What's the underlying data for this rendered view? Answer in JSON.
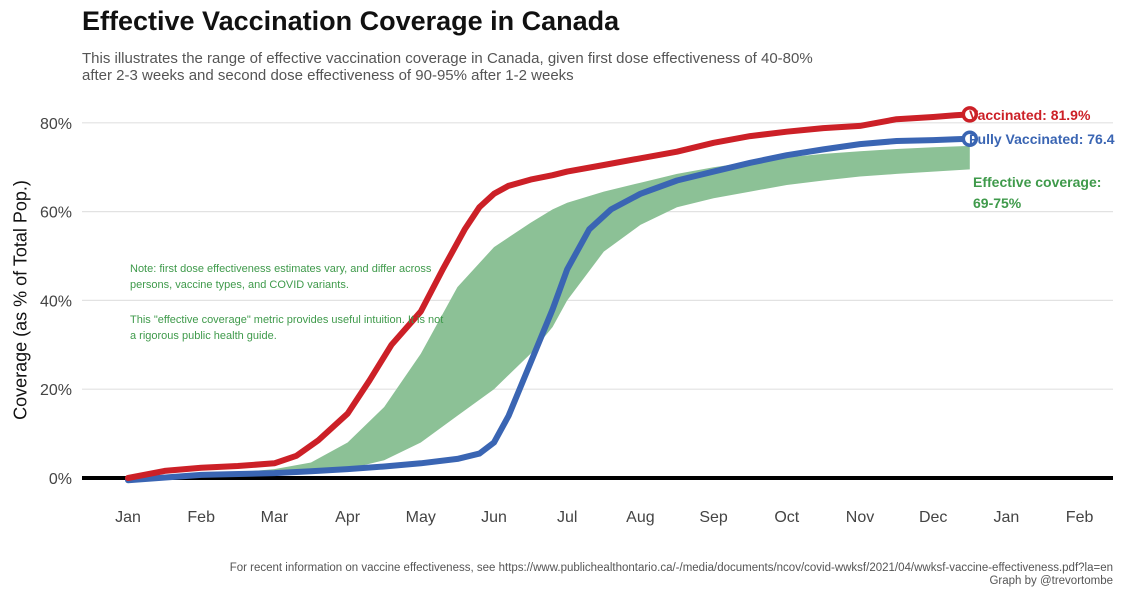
{
  "title": "Effective Vaccination Coverage in Canada",
  "subtitle": "This illustrates the range of effective vaccination coverage in Canada, given first dose effectiveness of 40-80% after 2-3 weeks and second dose effectiveness of 90-95% after 1-2 weeks",
  "notes": {
    "note1": "Note: first dose effectiveness estimates vary, and differ across persons, vaccine types, and COVID variants.",
    "note2": "This \"effective coverage\" metric provides useful intuition. It is not a rigorous public health guide."
  },
  "caption": {
    "line1": "For recent information on vaccine effectiveness, see https://www.publichealthontario.ca/-/media/documents/ncov/covid-wwksf/2021/04/wwksf-vaccine-effectiveness.pdf?la=en",
    "line2": "Graph by @trevortombe"
  },
  "end_labels": {
    "vaccinated": "Vaccinated: 81.9%",
    "fully": "Fully Vaccinated: 76.4",
    "effective_line1": "Effective coverage:",
    "effective_line2": "69-75%"
  },
  "colors": {
    "vaccinated": "#cc2027",
    "fully": "#3a65b3",
    "effective": "#8cc196",
    "effective_text": "#3f9a4b",
    "grid": "#e2e2e2",
    "baseline": "#000000"
  },
  "chart_data": {
    "type": "line",
    "title": "Effective Vaccination Coverage in Canada",
    "ylabel": "Coverage (as % of Total Pop.)",
    "xlabel": "",
    "x_ticks": [
      "Jan",
      "Feb",
      "Mar",
      "Apr",
      "May",
      "Jun",
      "Jul",
      "Aug",
      "Sep",
      "Oct",
      "Nov",
      "Dec",
      "Jan",
      "Feb"
    ],
    "xlim": [
      0,
      13.7
    ],
    "y_ticks": [
      0,
      20,
      40,
      60,
      80
    ],
    "y_tick_labels": [
      "0%",
      "20%",
      "40%",
      "60%",
      "80%"
    ],
    "ylim": [
      0,
      90
    ],
    "grid": true,
    "series": [
      {
        "name": "Vaccinated",
        "x": [
          0,
          0.5,
          1,
          1.5,
          2,
          2.3,
          2.6,
          3,
          3.3,
          3.6,
          4,
          4.3,
          4.6,
          4.8,
          5,
          5.2,
          5.5,
          5.8,
          6,
          6.5,
          7,
          7.5,
          8,
          8.5,
          9,
          9.5,
          10,
          10.5,
          11,
          11.3,
          11.5
        ],
        "y": [
          0,
          1.6,
          2.3,
          2.7,
          3.3,
          5.0,
          8.5,
          14.5,
          22.0,
          30.0,
          37.5,
          47.0,
          56.0,
          61.0,
          64.0,
          65.8,
          67.2,
          68.2,
          69.0,
          70.5,
          72.0,
          73.5,
          75.5,
          77.0,
          78.0,
          78.8,
          79.3,
          80.8,
          81.3,
          81.7,
          81.9
        ]
      },
      {
        "name": "Fully Vaccinated",
        "x": [
          0,
          1,
          2,
          2.5,
          3,
          3.5,
          4,
          4.5,
          4.8,
          5,
          5.2,
          5.5,
          5.8,
          6,
          6.3,
          6.6,
          7,
          7.5,
          8,
          8.5,
          9,
          9.5,
          10,
          10.5,
          11,
          11.3,
          11.5
        ],
        "y": [
          -0.5,
          0.7,
          1.1,
          1.5,
          2.0,
          2.6,
          3.3,
          4.3,
          5.5,
          8.0,
          14.0,
          26.0,
          38.0,
          47.0,
          56.0,
          60.5,
          64.0,
          67.0,
          69.0,
          71.0,
          72.7,
          74.0,
          75.2,
          75.9,
          76.1,
          76.3,
          76.4
        ]
      },
      {
        "name": "Effective coverage",
        "type": "band",
        "x": [
          0.5,
          1,
          2,
          2.5,
          3,
          3.5,
          4,
          4.5,
          5,
          5.5,
          5.8,
          6,
          6.5,
          7,
          7.5,
          8,
          8.5,
          9,
          9.5,
          10,
          10.5,
          11,
          11.5
        ],
        "low": [
          0,
          0.4,
          1.0,
          1.4,
          2.0,
          4.0,
          8.0,
          14.0,
          20.0,
          28.0,
          34.0,
          40.0,
          51.0,
          57.0,
          61.0,
          63.0,
          64.5,
          66.0,
          67.0,
          67.9,
          68.5,
          69.0,
          69.5
        ],
        "high": [
          0.2,
          0.6,
          2.0,
          3.5,
          8.0,
          16.0,
          28.0,
          43.0,
          52.0,
          57.5,
          60.5,
          62.0,
          64.5,
          66.5,
          68.5,
          70.0,
          71.2,
          72.2,
          73.0,
          73.6,
          74.1,
          74.5,
          74.8
        ]
      }
    ]
  }
}
